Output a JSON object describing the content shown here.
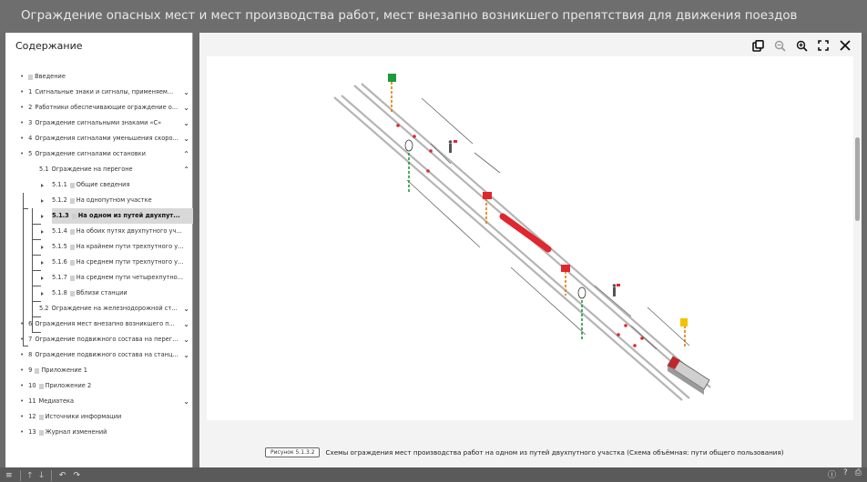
{
  "window": {
    "title": "Ограждение опасных мест и мест производства работ, мест внезапно возникшего препятствия для движения поездов"
  },
  "sidebar": {
    "header": "Содержание",
    "items": [
      {
        "num": "",
        "label": "Введение",
        "doc": true,
        "chev": ""
      },
      {
        "num": "1",
        "label": "Сигнальные знаки и сигналы, применяем...",
        "doc": false,
        "chev": "down"
      },
      {
        "num": "2",
        "label": "Работники обеспечивающие ограждение о...",
        "doc": false,
        "chev": "down"
      },
      {
        "num": "3",
        "label": "Ограждение сигнальными знаками «С»",
        "doc": false,
        "chev": "down"
      },
      {
        "num": "4",
        "label": "Ограждения сигналами уменьшения скоро...",
        "doc": false,
        "chev": "down"
      },
      {
        "num": "5",
        "label": "Ограждение сигналами остановки",
        "doc": false,
        "chev": "up"
      },
      {
        "num": "5.1",
        "label": "Ограждение на перегоне",
        "doc": false,
        "chev": "up"
      },
      {
        "num": "5.1.1",
        "label": "Общие сведения",
        "doc": true,
        "chev": ""
      },
      {
        "num": "5.1.2",
        "label": "На однопутном участке",
        "doc": true,
        "chev": ""
      },
      {
        "num": "5.1.3",
        "label": "На одном из путей двухпут...",
        "doc": true,
        "chev": ""
      },
      {
        "num": "5.1.4",
        "label": "На обоих путях двухпутного уч...",
        "doc": true,
        "chev": ""
      },
      {
        "num": "5.1.5",
        "label": "На крайнем пути трехпутного у...",
        "doc": true,
        "chev": ""
      },
      {
        "num": "5.1.6",
        "label": "На среднем пути трехпутного у...",
        "doc": true,
        "chev": ""
      },
      {
        "num": "5.1.7",
        "label": "На среднем пути четырехпутно...",
        "doc": true,
        "chev": ""
      },
      {
        "num": "5.1.8",
        "label": "Вблизи станции",
        "doc": true,
        "chev": ""
      },
      {
        "num": "5.2",
        "label": "Ограждение на железнодорожной ст...",
        "doc": false,
        "chev": "down"
      },
      {
        "num": "6",
        "label": "Ограждения мест внезапно возникшего п...",
        "doc": false,
        "chev": "down"
      },
      {
        "num": "7",
        "label": "Ограждение подвижного состава на перег...",
        "doc": false,
        "chev": "down"
      },
      {
        "num": "8",
        "label": "Ограждение подвижного состава на станц...",
        "doc": false,
        "chev": "down"
      },
      {
        "num": "9",
        "label": "Приложение 1",
        "doc": true,
        "chev": ""
      },
      {
        "num": "10",
        "label": "Приложение 2",
        "doc": true,
        "chev": ""
      },
      {
        "num": "11",
        "label": "Медиатека",
        "doc": false,
        "chev": "down"
      },
      {
        "num": "12",
        "label": "Источники информации",
        "doc": true,
        "chev": ""
      },
      {
        "num": "13",
        "label": "Журнал изменений",
        "doc": true,
        "chev": ""
      }
    ],
    "active_index": 9
  },
  "viewer": {
    "toolbar": [
      "copy-icon",
      "zoom-out-icon",
      "zoom-in-icon",
      "fullscreen-icon",
      "close-icon"
    ],
    "caption": {
      "badge": "Рисунок 5.1.3.2",
      "text": "Схемы ограждения мест производства работ на одном из путей двухпутного участка (Схема объёмная: пути общего пользования)"
    }
  },
  "colors": {
    "accent_red": "#e0262e",
    "signal_green": "#1d9b3a",
    "signal_yellow": "#f2c200"
  }
}
